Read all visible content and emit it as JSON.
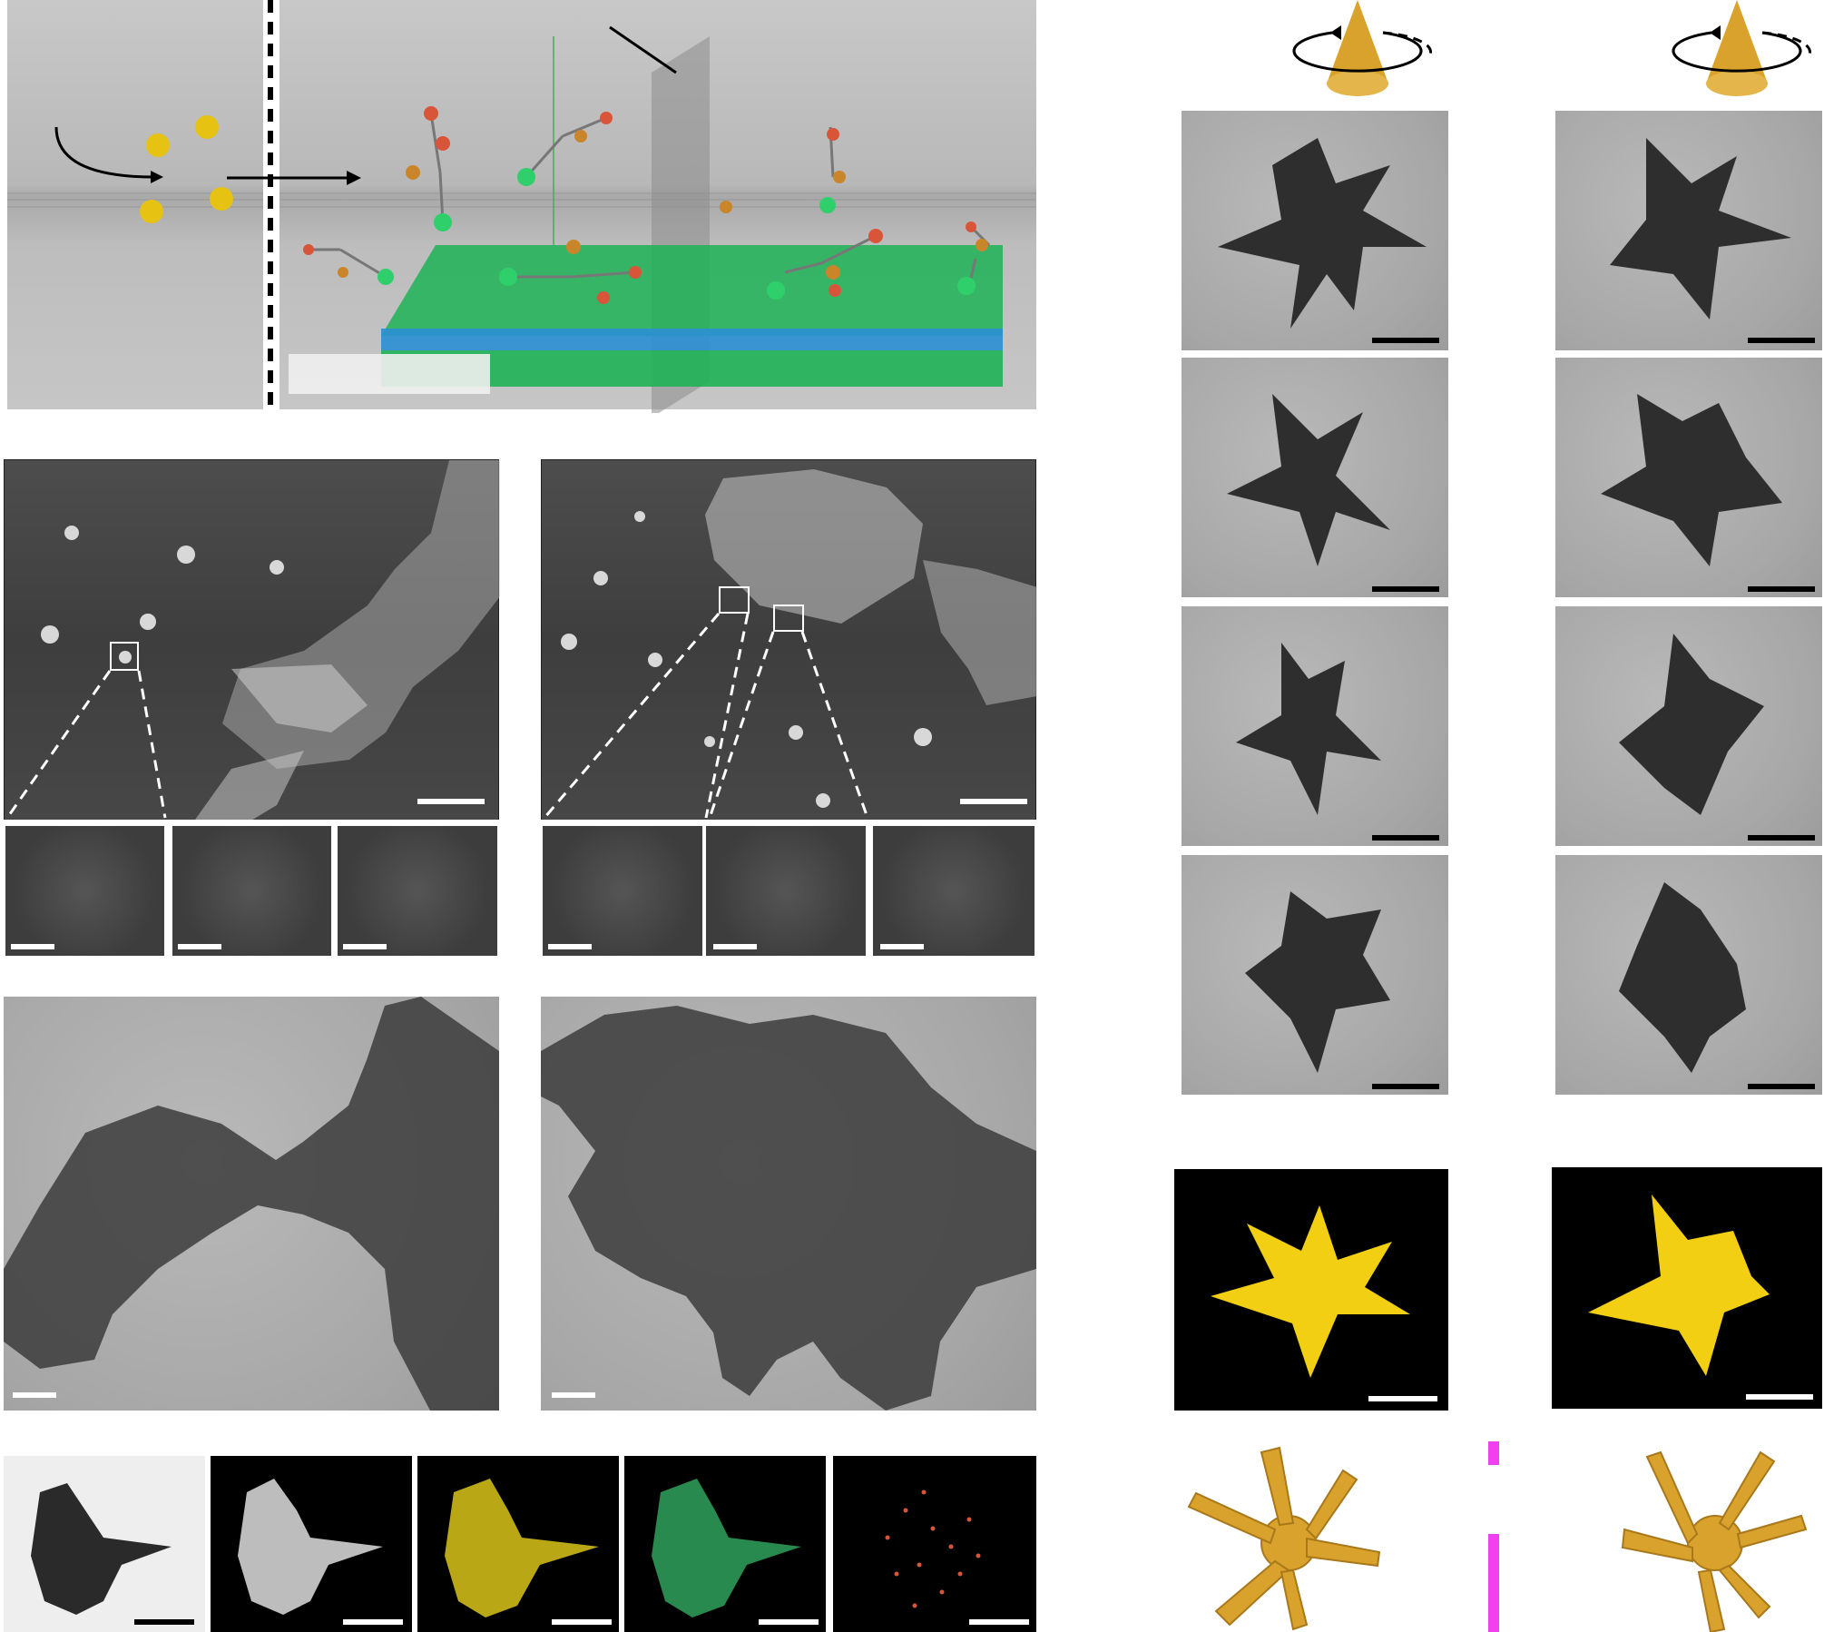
{
  "figure": {
    "panels": {
      "schematic": {
        "icon_left": "curved-arrow-icon",
        "icon_right": "arrow-icon"
      },
      "sem_left": {
        "insets": 3
      },
      "sem_right": {
        "insets": 3
      },
      "tem_overview_left": {},
      "tem_overview_right": {},
      "edx_maps": {
        "labels": []
      },
      "tem_series_left": {
        "rows": 4,
        "icon": "rotating-cone-icon"
      },
      "tem_series_right": {
        "rows": 4,
        "icon": "rotating-cone-icon"
      },
      "tomography": {},
      "models": {}
    },
    "colors": {
      "gold": "#e6c212",
      "gold_model": "#d9a22d",
      "sphere_green": "#2fd06b",
      "sphere_blue": "#3aa0e0",
      "mirror_magenta": "#f040f0"
    }
  }
}
